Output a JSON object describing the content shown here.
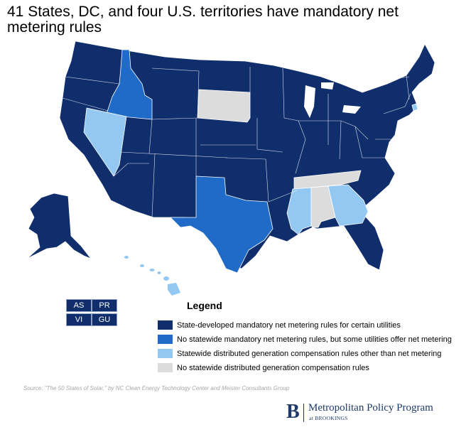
{
  "title": "41 States, DC, and four U.S. territories have mandatory net metering rules",
  "colors": {
    "state_developed": "#0f2e6b",
    "utility_only": "#1f6bc7",
    "other_compensation": "#93c8f2",
    "none": "#dcdcdc"
  },
  "territories": [
    "AS",
    "PR",
    "VI",
    "GU"
  ],
  "legend": {
    "title": "Legend",
    "items": [
      {
        "label": "State-developed mandatory net metering rules for certain utilities",
        "color": "#0f2e6b"
      },
      {
        "label": "No statewide mandatory net metering rules, but some utilities offer net metering",
        "color": "#1f6bc7"
      },
      {
        "label": "Statewide distributed generation compensation rules other than net metering",
        "color": "#93c8f2"
      },
      {
        "label": "No statewide distributed generation compensation rules",
        "color": "#dcdcdc"
      }
    ]
  },
  "source": "Source: \"The 50 States of Solar,\" by NC Clean Energy Technology Center and Meister Consultants Group",
  "logo": {
    "initial": "B",
    "name": "Metropolitan Policy Program",
    "sub": "at BROOKINGS"
  }
}
